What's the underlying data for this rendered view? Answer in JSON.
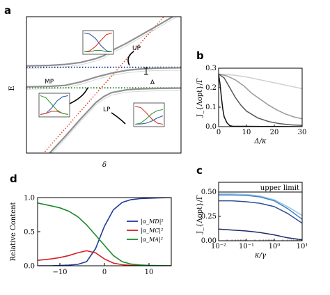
{
  "panel_labels": [
    "a",
    "b",
    "c",
    "d"
  ],
  "chart_data": [
    {
      "id": "a",
      "type": "line",
      "title": "",
      "xlabel": "δ",
      "ylabel": "E",
      "xlim": [
        -10,
        10
      ],
      "ylim": [
        -7,
        7
      ],
      "ticks": "none",
      "grid": false,
      "annotations": {
        "up": "UP",
        "mp": "MP",
        "lp": "LP",
        "delta": "Δ"
      },
      "reference_levels": [
        {
          "name": "dark-blue-dotted",
          "color": "#1f3b99",
          "y": 1.8
        },
        {
          "name": "dark-green-dotted",
          "color": "#2a8a2a",
          "y": -0.3
        }
      ],
      "diagonal": {
        "color": "#e04b2e",
        "x": [
          -10,
          10
        ],
        "y": [
          -9,
          9
        ]
      },
      "series": [
        {
          "color": "#909090",
          "x": [
            -10,
            -7,
            -5,
            -3,
            -1,
            0,
            1,
            3,
            5,
            7,
            10
          ],
          "y": [
            1.95,
            2.0,
            2.1,
            2.3,
            2.7,
            3.0,
            3.5,
            4.3,
            5.2,
            6.1,
            7.5
          ]
        },
        {
          "color": "#909090",
          "x": [
            -10,
            -7,
            -5,
            -3,
            -1,
            0,
            1,
            3,
            5,
            7,
            10
          ],
          "y": [
            -0.2,
            -0.15,
            -0.05,
            0.3,
            0.8,
            1.0,
            1.2,
            1.5,
            1.65,
            1.72,
            1.76
          ]
        },
        {
          "color": "#909090",
          "x": [
            -10,
            -7,
            -5,
            -3,
            -1,
            0,
            1,
            3,
            5,
            7,
            10
          ],
          "y": [
            -8.8,
            -7.0,
            -5.3,
            -3.5,
            -1.8,
            -1.2,
            -0.8,
            -0.5,
            -0.4,
            -0.36,
            -0.33
          ]
        }
      ],
      "insets": [
        {
          "name": "inset-up",
          "anchor": "top-center",
          "curves": [
            {
              "color": "#2f5aa8",
              "y": [
                0.95,
                0.9,
                0.7,
                0.35,
                0.1,
                0.05
              ]
            },
            {
              "color": "#d63a2a",
              "y": [
                0.05,
                0.1,
                0.3,
                0.6,
                0.88,
                0.95
              ]
            },
            {
              "color": "#3b9a3b",
              "y": [
                0.05,
                0.05,
                0.12,
                0.12,
                0.05,
                0.05
              ]
            }
          ]
        },
        {
          "name": "inset-mp",
          "anchor": "left-middle",
          "curves": [
            {
              "color": "#2f5aa8",
              "y": [
                0.05,
                0.1,
                0.35,
                0.7,
                0.9,
                0.95
              ]
            },
            {
              "color": "#d63a2a",
              "y": [
                0.05,
                0.1,
                0.2,
                0.2,
                0.1,
                0.05
              ]
            },
            {
              "color": "#3b9a3b",
              "y": [
                0.95,
                0.85,
                0.55,
                0.25,
                0.1,
                0.05
              ]
            }
          ]
        },
        {
          "name": "inset-lp",
          "anchor": "bottom-right",
          "curves": [
            {
              "color": "#2f5aa8",
              "y": [
                0.05,
                0.06,
                0.1,
                0.2,
                0.35,
                0.45
              ]
            },
            {
              "color": "#d63a2a",
              "y": [
                0.9,
                0.85,
                0.6,
                0.3,
                0.1,
                0.05
              ]
            },
            {
              "color": "#3b9a3b",
              "y": [
                0.05,
                0.1,
                0.3,
                0.55,
                0.7,
                0.75
              ]
            }
          ]
        }
      ]
    },
    {
      "id": "b",
      "type": "line",
      "title": "",
      "xlabel": "Δ/κ",
      "ylabel": "J_{Λopt}/Γ",
      "xlim": [
        0,
        30
      ],
      "ylim": [
        0,
        0.3
      ],
      "xticks": [
        0,
        10,
        20,
        30
      ],
      "yticks": [
        0.0,
        0.1,
        0.2,
        0.3
      ],
      "grid": false,
      "series": [
        {
          "color": "#111111",
          "x": [
            0,
            0.5,
            1,
            1.5,
            2,
            3,
            4,
            5,
            30
          ],
          "y": [
            0.27,
            0.22,
            0.15,
            0.09,
            0.05,
            0.02,
            0.005,
            0.002,
            0.0
          ]
        },
        {
          "color": "#555555",
          "x": [
            0,
            2,
            4,
            6,
            8,
            10,
            14,
            18,
            22,
            26,
            30
          ],
          "y": [
            0.27,
            0.25,
            0.2,
            0.15,
            0.11,
            0.08,
            0.045,
            0.026,
            0.015,
            0.009,
            0.006
          ]
        },
        {
          "color": "#9a9a9a",
          "x": [
            0,
            3,
            6,
            9,
            12,
            15,
            18,
            21,
            24,
            27,
            30
          ],
          "y": [
            0.27,
            0.26,
            0.24,
            0.21,
            0.17,
            0.14,
            0.11,
            0.085,
            0.065,
            0.05,
            0.04
          ]
        },
        {
          "color": "#cfcfcf",
          "x": [
            0,
            5,
            10,
            15,
            20,
            25,
            30
          ],
          "y": [
            0.27,
            0.265,
            0.255,
            0.24,
            0.225,
            0.21,
            0.195
          ]
        }
      ]
    },
    {
      "id": "c",
      "type": "line",
      "title": "",
      "xlabel": "κ/γ",
      "ylabel": "J_{Λopt}/Γ",
      "xscale": "log",
      "xlim": [
        0.01,
        10
      ],
      "ylim": [
        0,
        0.6
      ],
      "xticks": [
        "10⁻²",
        "10⁻¹",
        "10⁰",
        "10¹"
      ],
      "yticks": [
        0.0,
        0.25,
        0.5
      ],
      "grid": false,
      "reference": {
        "y": 0.5,
        "label": "upper limit",
        "color": "#000000"
      },
      "series": [
        {
          "color": "#8ec6e6",
          "x": [
            0.01,
            0.03,
            0.1,
            0.3,
            1,
            3,
            10
          ],
          "y": [
            0.48,
            0.48,
            0.475,
            0.46,
            0.42,
            0.35,
            0.26
          ]
        },
        {
          "color": "#4a82c6",
          "x": [
            0.01,
            0.03,
            0.1,
            0.3,
            1,
            3,
            10
          ],
          "y": [
            0.47,
            0.47,
            0.465,
            0.45,
            0.41,
            0.33,
            0.22
          ]
        },
        {
          "color": "#2f4f9a",
          "x": [
            0.01,
            0.03,
            0.1,
            0.3,
            1,
            3,
            10
          ],
          "y": [
            0.41,
            0.41,
            0.4,
            0.385,
            0.35,
            0.28,
            0.18
          ]
        },
        {
          "color": "#1c2a66",
          "x": [
            0.01,
            0.03,
            0.1,
            0.3,
            1,
            3,
            10
          ],
          "y": [
            0.12,
            0.11,
            0.1,
            0.085,
            0.06,
            0.03,
            0.01
          ]
        }
      ]
    },
    {
      "id": "d",
      "type": "line",
      "title": "",
      "xlabel": "",
      "ylabel": "Relative Content",
      "xlim": [
        -15,
        15
      ],
      "ylim": [
        0,
        1.0
      ],
      "xticks": [
        -10,
        0,
        10
      ],
      "yticks": [
        "0.0",
        "0.5",
        "1.0"
      ],
      "legend_position": "center-right",
      "grid": false,
      "series": [
        {
          "name": "|α_MD|²",
          "color": "#1f3b99",
          "x": [
            -15,
            -12,
            -10,
            -8,
            -6,
            -4,
            -2,
            0,
            2,
            4,
            6,
            8,
            10,
            12,
            15
          ],
          "y": [
            0.0,
            0.0,
            0.005,
            0.01,
            0.02,
            0.06,
            0.25,
            0.58,
            0.82,
            0.93,
            0.97,
            0.985,
            0.99,
            0.995,
            1.0
          ]
        },
        {
          "name": "|α_MC|²",
          "color": "#d42020",
          "x": [
            -15,
            -12,
            -10,
            -8,
            -6,
            -4,
            -2,
            0,
            2,
            4,
            6,
            8,
            10,
            12,
            15
          ],
          "y": [
            0.08,
            0.1,
            0.12,
            0.15,
            0.19,
            0.22,
            0.19,
            0.1,
            0.04,
            0.015,
            0.006,
            0.003,
            0.0015,
            0.001,
            0.0
          ]
        },
        {
          "name": "|α_MA|²",
          "color": "#1c8a2a",
          "x": [
            -15,
            -12,
            -10,
            -8,
            -6,
            -4,
            -2,
            0,
            2,
            4,
            6,
            8,
            10,
            12,
            15
          ],
          "y": [
            0.92,
            0.88,
            0.85,
            0.8,
            0.72,
            0.6,
            0.45,
            0.3,
            0.15,
            0.06,
            0.025,
            0.012,
            0.006,
            0.003,
            0.0
          ]
        }
      ]
    }
  ]
}
